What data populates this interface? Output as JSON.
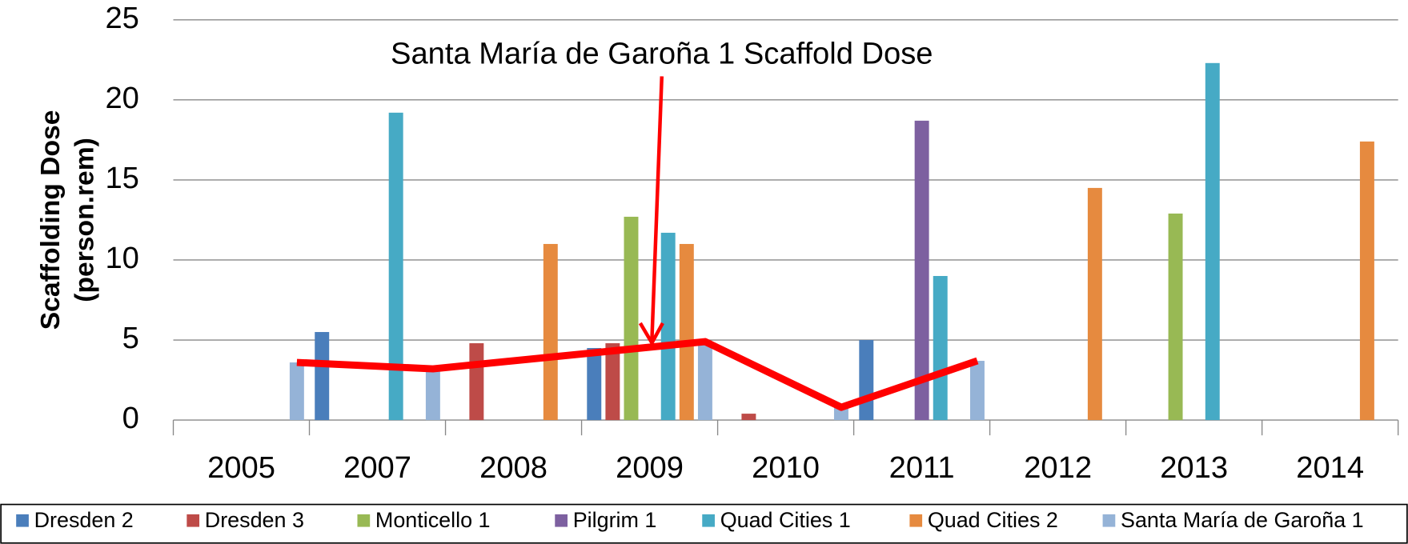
{
  "chart_data": {
    "type": "bar",
    "annotation": "Santa María de Garoña 1 Scaffold Dose",
    "y_label": [
      "Scaffolding Dose",
      "(person.rem)"
    ],
    "categories": [
      "2005",
      "2007",
      "2008",
      "2009",
      "2010",
      "2011",
      "2012",
      "2013",
      "2014"
    ],
    "series": [
      {
        "name": "Dresden 2",
        "color": "#4a7ebb",
        "values": [
          null,
          5.5,
          null,
          4.5,
          null,
          5.0,
          null,
          null,
          null
        ]
      },
      {
        "name": "Dresden 3",
        "color": "#be4b48",
        "values": [
          null,
          null,
          4.8,
          4.8,
          0.4,
          null,
          null,
          null,
          null
        ]
      },
      {
        "name": "Monticello 1",
        "color": "#98b954",
        "values": [
          null,
          null,
          null,
          12.7,
          null,
          null,
          null,
          12.9,
          null
        ]
      },
      {
        "name": "Pilgrim 1",
        "color": "#7d60a0",
        "values": [
          null,
          null,
          null,
          null,
          null,
          18.7,
          null,
          null,
          null
        ]
      },
      {
        "name": "Quad Cities 1",
        "color": "#46aac5",
        "values": [
          null,
          19.2,
          null,
          11.7,
          null,
          9.0,
          null,
          22.3,
          null
        ]
      },
      {
        "name": "Quad Cities 2",
        "color": "#e68a3f",
        "values": [
          null,
          null,
          11.0,
          11.0,
          null,
          null,
          14.5,
          null,
          17.4
        ]
      },
      {
        "name": "Santa María de Garoña 1",
        "color": "#95b3d7",
        "values": [
          3.6,
          3.2,
          null,
          4.9,
          0.8,
          3.7,
          null,
          null,
          null
        ]
      }
    ],
    "annotation_color": "#ff0000",
    "ylim": [
      0,
      25
    ],
    "yticks": [
      0,
      5,
      10,
      15,
      20,
      25
    ],
    "grid": true
  }
}
